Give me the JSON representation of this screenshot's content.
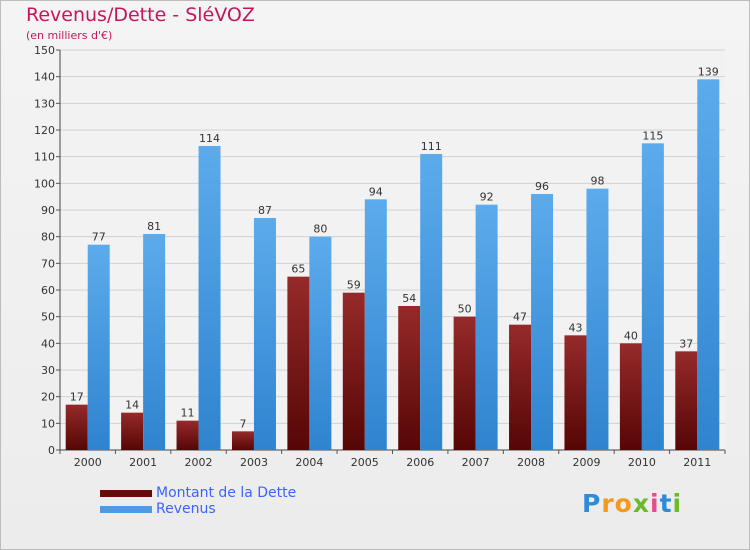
{
  "title": "Revenus/Dette - SléVOZ",
  "subtitle": "(en milliers d'€)",
  "chart_data": {
    "type": "bar",
    "title": "Revenus/Dette - SléVOZ",
    "ylabel": "(en milliers d'€)",
    "categories": [
      "2000",
      "2001",
      "2002",
      "2003",
      "2004",
      "2005",
      "2006",
      "2007",
      "2008",
      "2009",
      "2010",
      "2011"
    ],
    "series": [
      {
        "name": "Montant de la Dette",
        "color": "#7a1010",
        "values": [
          17,
          14,
          11,
          7,
          65,
          59,
          54,
          50,
          47,
          43,
          40,
          37
        ]
      },
      {
        "name": "Revenus",
        "color": "#4a9de2",
        "values": [
          77,
          81,
          114,
          87,
          80,
          94,
          111,
          92,
          96,
          98,
          115,
          139
        ]
      }
    ],
    "ylim": [
      0,
      150
    ],
    "yticks": [
      0,
      10,
      20,
      30,
      40,
      50,
      60,
      70,
      80,
      90,
      100,
      110,
      120,
      130,
      140,
      150
    ],
    "grid": true,
    "legend": "bottom-left"
  },
  "legend": {
    "debt_label": "Montant de la Dette",
    "revenue_label": "Revenus",
    "debt_color": "#6b0a0a",
    "revenue_color": "#4a9de2"
  },
  "logo": {
    "letters": [
      "P",
      "r",
      "o",
      "x",
      "i",
      "t",
      "i"
    ],
    "colors": [
      "#2e8bd8",
      "#f39a1e",
      "#f39a1e",
      "#6aba2a",
      "#e84a8a",
      "#2e8bd8",
      "#6aba2a"
    ]
  }
}
